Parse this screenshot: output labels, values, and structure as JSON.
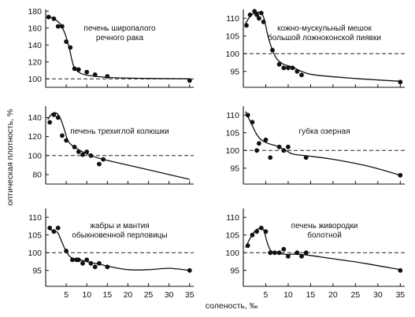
{
  "chart_data": {
    "type": "line",
    "xlabel": "соленость, ‰",
    "ylabel": "оптическая плотность, %",
    "reference_line": 100,
    "panels": [
      {
        "title": [
          "печень широпалого",
          "речного рака"
        ],
        "xlim": [
          0,
          36
        ],
        "ylim": [
          90,
          182
        ],
        "yticks": [
          100,
          120,
          140,
          160,
          180
        ],
        "xticks": [],
        "points": [
          [
            0.7,
            173
          ],
          [
            2,
            171
          ],
          [
            3,
            162
          ],
          [
            4,
            162
          ],
          [
            5,
            144
          ],
          [
            6,
            137
          ],
          [
            7,
            112
          ],
          [
            8,
            111
          ],
          [
            10,
            108
          ],
          [
            12,
            105
          ],
          [
            15,
            103
          ],
          [
            35,
            98
          ]
        ],
        "curve": [
          [
            0.5,
            174
          ],
          [
            2,
            171
          ],
          [
            3.5,
            165
          ],
          [
            4.8,
            152
          ],
          [
            5.8,
            135
          ],
          [
            6.8,
            115
          ],
          [
            8,
            108
          ],
          [
            9.5,
            105
          ],
          [
            12,
            103
          ],
          [
            16,
            101.5
          ],
          [
            25,
            100.5
          ],
          [
            35,
            100
          ]
        ]
      },
      {
        "title": [
          "кожно-мускульный мешок",
          "большой ложноконской пиявки"
        ],
        "xlim": [
          0,
          36
        ],
        "ylim": [
          90.5,
          112.5
        ],
        "yticks": [
          95,
          100,
          105,
          110
        ],
        "xticks": [],
        "points": [
          [
            0.7,
            108
          ],
          [
            1.5,
            111
          ],
          [
            2.5,
            112
          ],
          [
            3,
            111
          ],
          [
            3.5,
            110
          ],
          [
            4,
            111.5
          ],
          [
            4.5,
            109
          ],
          [
            6.5,
            101
          ],
          [
            8,
            97
          ],
          [
            9,
            96
          ],
          [
            10,
            96
          ],
          [
            11,
            96
          ],
          [
            12,
            95
          ],
          [
            13,
            94
          ],
          [
            35,
            92
          ]
        ],
        "curve": [
          [
            0.5,
            108.5
          ],
          [
            1.5,
            110.5
          ],
          [
            2.8,
            111.6
          ],
          [
            3.8,
            111.5
          ],
          [
            4.6,
            110
          ],
          [
            5.5,
            105
          ],
          [
            6.5,
            101
          ],
          [
            7.5,
            98.5
          ],
          [
            9,
            97
          ],
          [
            11,
            96.2
          ],
          [
            13,
            95
          ],
          [
            16,
            94
          ],
          [
            25,
            93
          ],
          [
            35,
            92.2
          ]
        ]
      },
      {
        "title": [
          "печень трехиглой колюшки"
        ],
        "xlim": [
          0,
          36
        ],
        "ylim": [
          70,
          152
        ],
        "yticks": [
          80,
          100,
          120,
          140
        ],
        "xticks": [],
        "points": [
          [
            1,
            135
          ],
          [
            2,
            143
          ],
          [
            3,
            140
          ],
          [
            4,
            121
          ],
          [
            5,
            116
          ],
          [
            7,
            109
          ],
          [
            8,
            104
          ],
          [
            9,
            101
          ],
          [
            10,
            104
          ],
          [
            11,
            100
          ],
          [
            13,
            91
          ],
          [
            14,
            96
          ]
        ],
        "curve": [
          [
            0.5,
            138
          ],
          [
            1.5,
            144
          ],
          [
            2.5,
            145
          ],
          [
            3.5,
            140
          ],
          [
            4.5,
            128
          ],
          [
            5.5,
            115
          ],
          [
            7,
            109
          ],
          [
            9,
            104
          ],
          [
            11,
            100
          ],
          [
            14,
            96
          ],
          [
            20,
            90
          ],
          [
            27,
            83
          ],
          [
            35,
            75
          ]
        ]
      },
      {
        "title": [
          "губка озерная"
        ],
        "xlim": [
          0,
          36
        ],
        "ylim": [
          90.5,
          112.5
        ],
        "yticks": [
          95,
          100,
          105,
          110
        ],
        "xticks": [],
        "points": [
          [
            1,
            110
          ],
          [
            2,
            108
          ],
          [
            3,
            100
          ],
          [
            3.5,
            102
          ],
          [
            5,
            103
          ],
          [
            6,
            98
          ],
          [
            8,
            101
          ],
          [
            9,
            100
          ],
          [
            10,
            101
          ],
          [
            14,
            98
          ],
          [
            35,
            93
          ]
        ],
        "curve": [
          [
            0.5,
            111
          ],
          [
            1.8,
            107.5
          ],
          [
            3,
            104.5
          ],
          [
            4,
            103
          ],
          [
            5.5,
            102
          ],
          [
            7.5,
            101.2
          ],
          [
            9.5,
            100
          ],
          [
            11,
            99
          ],
          [
            14,
            98.5
          ],
          [
            20,
            97.5
          ],
          [
            28,
            95.5
          ],
          [
            35,
            93
          ]
        ]
      },
      {
        "title": [
          "жабры и мантия",
          "обыкновенной перловицы"
        ],
        "xlim": [
          0,
          36
        ],
        "ylim": [
          90.5,
          112.5
        ],
        "yticks": [
          95,
          100,
          105,
          110
        ],
        "xticks": [
          5,
          10,
          15,
          20,
          25,
          30,
          35
        ],
        "points": [
          [
            1,
            107
          ],
          [
            2,
            106
          ],
          [
            3,
            107
          ],
          [
            5,
            100.5
          ],
          [
            6.5,
            98
          ],
          [
            7.5,
            98
          ],
          [
            8,
            98
          ],
          [
            9,
            97
          ],
          [
            10,
            98
          ],
          [
            11,
            97
          ],
          [
            12,
            96
          ],
          [
            13,
            97
          ],
          [
            15,
            96
          ],
          [
            35,
            95
          ]
        ],
        "curve": [
          [
            0.5,
            107
          ],
          [
            2,
            106
          ],
          [
            3,
            105.5
          ],
          [
            4.5,
            101.5
          ],
          [
            5.8,
            99
          ],
          [
            7,
            98.3
          ],
          [
            9,
            97.8
          ],
          [
            11,
            97.2
          ],
          [
            13,
            96.8
          ],
          [
            15,
            96.2
          ],
          [
            20,
            95.2
          ],
          [
            25,
            95.2
          ],
          [
            30,
            95.6
          ],
          [
            35,
            95
          ]
        ]
      },
      {
        "title": [
          "печень живородки",
          "болотной"
        ],
        "xlim": [
          0,
          36
        ],
        "ylim": [
          90.5,
          112.5
        ],
        "yticks": [
          95,
          100,
          105,
          110
        ],
        "xticks": [
          5,
          10,
          15,
          20,
          25,
          30,
          35
        ],
        "points": [
          [
            1,
            102
          ],
          [
            2,
            105
          ],
          [
            3,
            106
          ],
          [
            4,
            107
          ],
          [
            5,
            106
          ],
          [
            6,
            100
          ],
          [
            7,
            100
          ],
          [
            8,
            100
          ],
          [
            9,
            101
          ],
          [
            10,
            99
          ],
          [
            12,
            100
          ],
          [
            13,
            99
          ],
          [
            14,
            100
          ],
          [
            35,
            95
          ]
        ],
        "curve": [
          [
            0.5,
            101.5
          ],
          [
            1.5,
            104
          ],
          [
            2.5,
            106
          ],
          [
            3.5,
            106.8
          ],
          [
            4.5,
            106.5
          ],
          [
            5.3,
            103
          ],
          [
            6.2,
            100.5
          ],
          [
            8,
            99.8
          ],
          [
            10,
            99.5
          ],
          [
            12,
            99.6
          ],
          [
            15,
            99.2
          ],
          [
            20,
            98.3
          ],
          [
            27,
            97
          ],
          [
            35,
            95.2
          ]
        ]
      }
    ]
  }
}
